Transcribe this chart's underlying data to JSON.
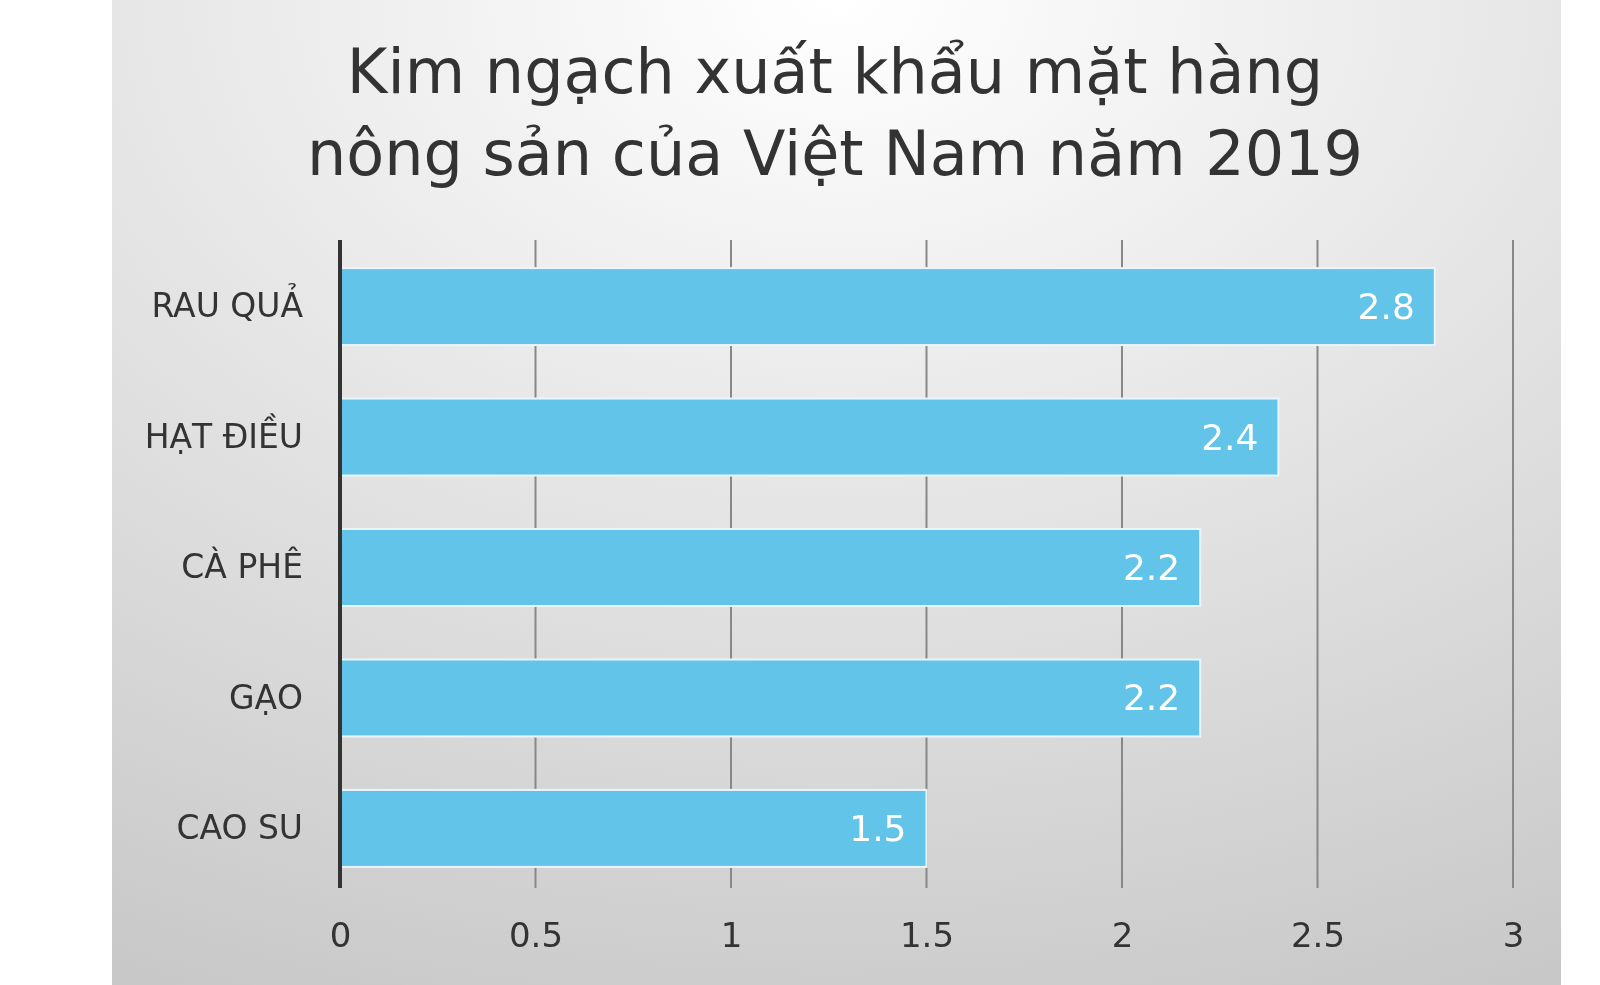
{
  "chart_data": {
    "type": "bar",
    "orientation": "horizontal",
    "title": "Kim ngạch xuất khẩu mặt hàng nông sản của Việt Nam năm 2019",
    "categories": [
      "RAU QUẢ",
      "HẠT ĐIỀU",
      "CÀ PHÊ",
      "GẠO",
      "CAO SU"
    ],
    "values": [
      2.8,
      2.4,
      2.2,
      2.2,
      1.5
    ],
    "color": "#62c4e8",
    "xlim": [
      0,
      3
    ],
    "xticks": [
      0,
      0.5,
      1,
      1.5,
      2,
      2.5,
      3
    ],
    "grid": "x",
    "data_labels": true
  }
}
